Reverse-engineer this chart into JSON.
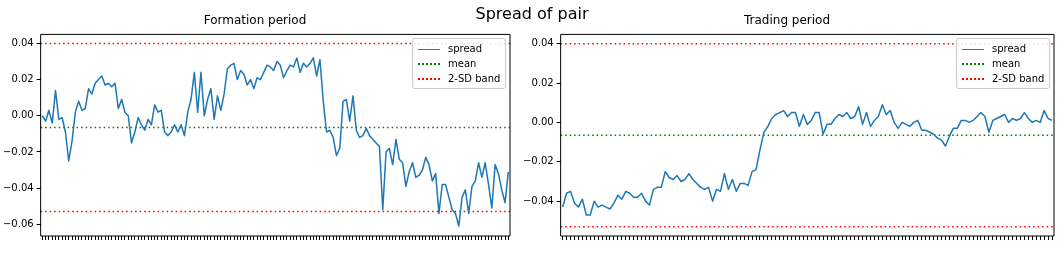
{
  "chart_data": [
    {
      "type": "other",
      "title": "Spread of pair"
    },
    {
      "type": "line",
      "title": "Formation period",
      "legend": "top right",
      "line_style": "solid",
      "categories": [
        null,
        null,
        null,
        null,
        null,
        null,
        null,
        null,
        null,
        null,
        null,
        null,
        null,
        null,
        null,
        null,
        null,
        null,
        null,
        null,
        null,
        null,
        null,
        null,
        null,
        null,
        null,
        null,
        null,
        null,
        null,
        null,
        null,
        null,
        null,
        null,
        null,
        null,
        null,
        null,
        null,
        null,
        null,
        null,
        null,
        null,
        null,
        null,
        null,
        null,
        null,
        null,
        null,
        null,
        null,
        null,
        null,
        null,
        null,
        null,
        null,
        null,
        null,
        null,
        null,
        null,
        null,
        null,
        null,
        null,
        null,
        null,
        null,
        null,
        null,
        null,
        null,
        null,
        null,
        null,
        null,
        null,
        null,
        null,
        null,
        null,
        null,
        null,
        null,
        null,
        null,
        null,
        null,
        null,
        null,
        null,
        null,
        null,
        null,
        null,
        null,
        null,
        null,
        null,
        null,
        null,
        null,
        null,
        null,
        null,
        null,
        null,
        null,
        null,
        null,
        null,
        null,
        null,
        null,
        null,
        null,
        null,
        null,
        null,
        null,
        null,
        null,
        null,
        null,
        null,
        null,
        null,
        null,
        null,
        null,
        null,
        null,
        null,
        null,
        null,
        null,
        null
      ],
      "series": [
        {
          "name": "spread",
          "color": "#1f77b4",
          "values": [
            0.0,
            -0.003,
            0.003,
            -0.004,
            0.014,
            -0.002,
            -0.001,
            -0.009,
            -0.025,
            -0.014,
            0.002,
            0.008,
            0.003,
            0.004,
            0.015,
            0.012,
            0.018,
            0.02,
            0.022,
            0.017,
            0.018,
            0.016,
            0.018,
            0.004,
            0.009,
            0.002,
            0.0,
            -0.015,
            -0.009,
            -0.001,
            -0.005,
            -0.008,
            -0.002,
            -0.005,
            0.006,
            0.002,
            0.003,
            -0.009,
            -0.011,
            -0.009,
            -0.005,
            -0.009,
            -0.005,
            -0.011,
            0.002,
            0.009,
            0.024,
            0.002,
            0.024,
            0.0,
            0.009,
            0.015,
            -0.002,
            0.011,
            0.003,
            0.012,
            0.026,
            0.028,
            0.029,
            0.02,
            0.025,
            0.023,
            0.017,
            0.02,
            0.015,
            0.021,
            0.02,
            0.024,
            0.028,
            0.027,
            0.025,
            0.03,
            0.028,
            0.021,
            0.025,
            0.028,
            0.027,
            0.032,
            0.024,
            0.029,
            0.027,
            0.029,
            0.032,
            0.022,
            0.031,
            0.008,
            -0.009,
            -0.008,
            -0.012,
            -0.022,
            -0.018,
            0.008,
            0.009,
            -0.003,
            0.011,
            -0.008,
            -0.012,
            -0.011,
            -0.007,
            -0.011,
            -0.013,
            -0.015,
            -0.017,
            -0.052,
            -0.02,
            -0.018,
            -0.027,
            -0.013,
            -0.024,
            -0.026,
            -0.039,
            -0.031,
            -0.026,
            -0.034,
            -0.033,
            -0.03,
            -0.023,
            -0.027,
            -0.036,
            -0.032,
            -0.054,
            -0.038,
            -0.038,
            -0.045,
            -0.052,
            -0.054,
            -0.061,
            -0.045,
            -0.041,
            -0.054,
            -0.039,
            -0.036,
            -0.026,
            -0.034,
            -0.026,
            -0.038,
            -0.051,
            -0.027,
            -0.032,
            -0.041,
            -0.048,
            -0.031
          ]
        }
      ],
      "ylim": [
        -0.0665,
        0.045
      ],
      "yticks": [
        {
          "value": -0.06,
          "label": "−0.06"
        },
        {
          "value": -0.04,
          "label": "−0.04"
        },
        {
          "value": -0.02,
          "label": "−0.02"
        },
        {
          "value": 0,
          "label": "0.00"
        },
        {
          "value": 0.02,
          "label": "0.02"
        },
        {
          "value": 0.04,
          "label": "0.04"
        }
      ],
      "ref_lines": [
        {
          "axis": "y",
          "value": -0.0065,
          "label": "mean",
          "color": "#008000",
          "line_style": "dotted"
        },
        {
          "axis": "y",
          "value": 0.04,
          "label": "2-SD band",
          "color": "#ff0000",
          "line_style": "dotted"
        },
        {
          "axis": "y",
          "value": -0.053,
          "color": "#ff0000",
          "line_style": "dotted"
        }
      ]
    },
    {
      "type": "line",
      "title": "Trading period",
      "legend": "top right",
      "line_style": "solid",
      "categories": [
        null,
        null,
        null,
        null,
        null,
        null,
        null,
        null,
        null,
        null,
        null,
        null,
        null,
        null,
        null,
        null,
        null,
        null,
        null,
        null,
        null,
        null,
        null,
        null,
        null,
        null,
        null,
        null,
        null,
        null,
        null,
        null,
        null,
        null,
        null,
        null,
        null,
        null,
        null,
        null,
        null,
        null,
        null,
        null,
        null,
        null,
        null,
        null,
        null,
        null,
        null,
        null,
        null,
        null,
        null,
        null,
        null,
        null,
        null,
        null,
        null,
        null,
        null,
        null,
        null,
        null,
        null,
        null,
        null,
        null,
        null,
        null,
        null,
        null,
        null,
        null,
        null,
        null,
        null,
        null,
        null,
        null,
        null,
        null,
        null,
        null,
        null,
        null,
        null,
        null,
        null,
        null,
        null,
        null,
        null,
        null,
        null,
        null,
        null,
        null,
        null,
        null,
        null,
        null,
        null,
        null,
        null,
        null,
        null,
        null,
        null,
        null,
        null,
        null,
        null,
        null,
        null,
        null,
        null,
        null,
        null,
        null,
        null,
        null,
        null
      ],
      "series": [
        {
          "name": "spread",
          "color": "#1f77b4",
          "values": [
            -0.043,
            -0.036,
            -0.035,
            -0.041,
            -0.043,
            -0.039,
            -0.047,
            -0.047,
            -0.04,
            -0.043,
            -0.042,
            -0.043,
            -0.044,
            -0.041,
            -0.037,
            -0.039,
            -0.035,
            -0.036,
            -0.038,
            -0.038,
            -0.036,
            -0.04,
            -0.042,
            -0.034,
            -0.033,
            -0.033,
            -0.025,
            -0.028,
            -0.029,
            -0.027,
            -0.03,
            -0.029,
            -0.026,
            -0.029,
            -0.031,
            -0.033,
            -0.034,
            -0.033,
            -0.04,
            -0.034,
            -0.035,
            -0.026,
            -0.034,
            -0.029,
            -0.035,
            -0.031,
            -0.031,
            -0.032,
            -0.025,
            -0.024,
            -0.014,
            -0.005,
            -0.002,
            0.002,
            0.004,
            0.005,
            0.006,
            0.003,
            0.005,
            0.005,
            -0.002,
            0.004,
            -0.001,
            0.001,
            0.005,
            0.005,
            -0.006,
            -0.001,
            -0.001,
            0.002,
            0.004,
            0.003,
            0.005,
            0.002,
            0.003,
            0.008,
            -0.001,
            0.005,
            -0.002,
            0.001,
            0.003,
            0.009,
            0.004,
            0.006,
            0.0,
            -0.003,
            0.0,
            -0.001,
            -0.002,
            0.0,
            0.001,
            -0.004,
            -0.004,
            -0.005,
            -0.006,
            -0.008,
            -0.009,
            -0.012,
            -0.007,
            -0.003,
            -0.003,
            0.001,
            0.001,
            0.0,
            0.001,
            0.003,
            0.005,
            0.003,
            -0.005,
            0.001,
            0.002,
            0.003,
            0.004,
            0.0,
            0.002,
            0.001,
            0.002,
            0.005,
            0.002,
            0.0,
            0.001,
            0.0,
            0.006,
            0.002,
            0.001
          ]
        }
      ],
      "ylim": [
        -0.0577,
        0.0447
      ],
      "yticks": [
        {
          "value": -0.04,
          "label": "−0.04"
        },
        {
          "value": -0.02,
          "label": "−0.02"
        },
        {
          "value": 0,
          "label": "0.00"
        },
        {
          "value": 0.02,
          "label": "0.02"
        },
        {
          "value": 0.04,
          "label": "0.04"
        }
      ],
      "ref_lines": [
        {
          "axis": "y",
          "value": -0.0065,
          "label": "mean",
          "color": "#008000",
          "line_style": "dotted"
        },
        {
          "axis": "y",
          "value": 0.04,
          "label": "2-SD band",
          "color": "#ff0000",
          "line_style": "dotted"
        },
        {
          "axis": "y",
          "value": -0.053,
          "color": "#ff0000",
          "line_style": "dotted"
        }
      ]
    }
  ]
}
